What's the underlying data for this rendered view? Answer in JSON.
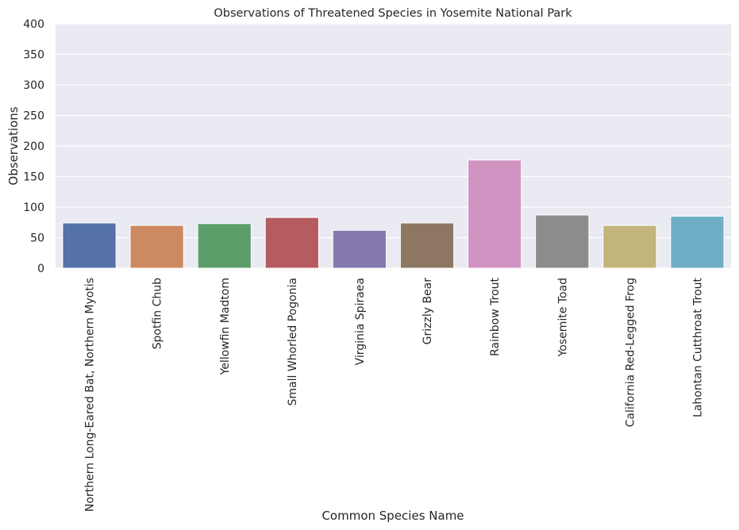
{
  "chart_data": {
    "type": "bar",
    "title": "Observations of Threatened Species in Yosemite National Park",
    "xlabel": "Common Species Name",
    "ylabel": "Observations",
    "ylim": [
      0,
      400
    ],
    "yticks": [
      "0",
      "50",
      "100",
      "150",
      "200",
      "250",
      "300",
      "350",
      "400"
    ],
    "grid": true,
    "categories": [
      "Northern Long-Eared Bat, Northern Myotis",
      "Spotfin Chub",
      "Yellowfin Madtom",
      "Small Whorled Pogonia",
      "Virginia Spiraea",
      "Grizzly Bear",
      "Rainbow Trout",
      "Yosemite Toad",
      "California Red-Legged Frog",
      "Lahontan Cutthroat Trout"
    ],
    "values": [
      74,
      70,
      73,
      83,
      62,
      74,
      177,
      87,
      70,
      85
    ],
    "colors": [
      "#5471a8",
      "#cd8960",
      "#5c9e6a",
      "#b65b5f",
      "#8579ad",
      "#8d7762",
      "#d194c2",
      "#8c8c8c",
      "#c3b47c",
      "#6faec6"
    ]
  }
}
